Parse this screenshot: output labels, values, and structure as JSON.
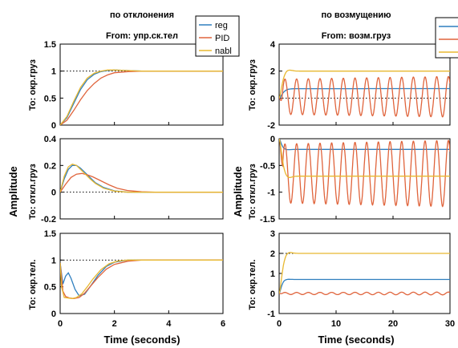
{
  "figure": {
    "y_common_label": "Amplitude",
    "x_common_label": "Time (seconds)"
  },
  "columns": [
    {
      "title": "по отклонения",
      "from": "From: упр.ск.тел"
    },
    {
      "title": "по возмущению",
      "from": "From: возм.груз"
    }
  ],
  "rows": [
    {
      "label": "To: окр.груз"
    },
    {
      "label": "To: откл.груз"
    },
    {
      "label": "To: окр.тел."
    }
  ],
  "legend": [
    "reg",
    "PID",
    "nabl"
  ],
  "colors": {
    "reg": "#2f7fbf",
    "PID": "#e0643c",
    "nabl": "#e8b830"
  },
  "chart_data": {
    "type": "line",
    "panels": [
      {
        "row": 0,
        "col": 0,
        "xlim": [
          0,
          6
        ],
        "ylim": [
          0,
          1.5
        ],
        "yticks": [
          "0",
          "0.5",
          "1",
          "1.5"
        ],
        "dotted_y": 1,
        "series": [
          {
            "legend": "reg",
            "x": [
              0,
              0.25,
              0.5,
              0.75,
              1,
              1.25,
              1.5,
              1.75,
              2,
              2.5,
              3,
              3.5,
              4,
              5,
              6
            ],
            "y": [
              0,
              0.14,
              0.4,
              0.66,
              0.84,
              0.94,
              0.99,
              1.01,
              1.02,
              1.01,
              1,
              1,
              1,
              1,
              1
            ]
          },
          {
            "legend": "PID",
            "x": [
              0,
              0.25,
              0.5,
              0.75,
              1,
              1.25,
              1.5,
              1.75,
              2,
              2.5,
              3,
              3.5,
              4,
              5,
              6
            ],
            "y": [
              0,
              0.09,
              0.27,
              0.47,
              0.64,
              0.77,
              0.87,
              0.93,
              0.97,
              0.99,
              1,
              1,
              1,
              1,
              1
            ]
          },
          {
            "legend": "nabl",
            "x": [
              0,
              0.25,
              0.5,
              0.75,
              1,
              1.25,
              1.5,
              1.75,
              2,
              2.5,
              3,
              3.5,
              4,
              5,
              6
            ],
            "y": [
              0,
              0.16,
              0.44,
              0.7,
              0.87,
              0.96,
              1,
              1.02,
              1.02,
              1.01,
              1,
              1,
              1,
              1,
              1
            ]
          }
        ]
      },
      {
        "row": 0,
        "col": 1,
        "xlim": [
          0,
          30
        ],
        "ylim": [
          -2,
          4
        ],
        "yticks": [
          "-2",
          "0",
          "2",
          "4"
        ],
        "dotted_y": 0,
        "series": [
          {
            "legend": "reg",
            "kind": "step",
            "final": 0.7,
            "rise": 1.5
          },
          {
            "legend": "PID",
            "kind": "osc",
            "center": 0.1,
            "amp_start": 1.3,
            "amp_end": 1.5,
            "period": 2.05
          },
          {
            "legend": "nabl",
            "kind": "step",
            "final": 2.0,
            "rise": 1.3,
            "overshoot": 0.08
          }
        ]
      },
      {
        "row": 1,
        "col": 0,
        "xlim": [
          0,
          6
        ],
        "ylim": [
          -0.2,
          0.4
        ],
        "yticks": [
          "-0.2",
          "0",
          "0.2",
          "0.4"
        ],
        "dotted_y": 0,
        "series": [
          {
            "legend": "reg",
            "x": [
              0,
              0.15,
              0.3,
              0.45,
              0.6,
              0.75,
              0.9,
              1.1,
              1.3,
              1.6,
              2,
              2.5,
              3,
              4,
              6
            ],
            "y": [
              0,
              0.1,
              0.17,
              0.2,
              0.2,
              0.18,
              0.15,
              0.11,
              0.07,
              0.035,
              0.01,
              0,
              0,
              0,
              0
            ]
          },
          {
            "legend": "PID",
            "x": [
              0,
              0.2,
              0.4,
              0.6,
              0.8,
              1,
              1.2,
              1.5,
              1.8,
              2.1,
              2.5,
              3,
              3.5,
              4,
              6
            ],
            "y": [
              0,
              0.06,
              0.11,
              0.135,
              0.14,
              0.13,
              0.115,
              0.085,
              0.055,
              0.03,
              0.012,
              0.003,
              0,
              0,
              0
            ]
          },
          {
            "legend": "nabl",
            "x": [
              0,
              0.15,
              0.3,
              0.45,
              0.6,
              0.75,
              0.9,
              1.1,
              1.3,
              1.6,
              2,
              2.5,
              3,
              4,
              6
            ],
            "y": [
              0,
              0.12,
              0.19,
              0.21,
              0.2,
              0.17,
              0.14,
              0.1,
              0.065,
              0.03,
              0.008,
              0,
              0,
              0,
              0
            ]
          }
        ]
      },
      {
        "row": 1,
        "col": 1,
        "xlim": [
          0,
          30
        ],
        "ylim": [
          -1.5,
          0
        ],
        "yticks": [
          "-1.5",
          "-1",
          "-0.5",
          "0"
        ],
        "dotted_y": 0,
        "series": [
          {
            "legend": "reg",
            "kind": "step",
            "final": -0.2,
            "rise": 1.0,
            "overshoot": 0.05
          },
          {
            "legend": "PID",
            "kind": "osc",
            "center": -0.65,
            "amp_start": 0.55,
            "amp_end": 0.62,
            "period": 2.05
          },
          {
            "legend": "nabl",
            "kind": "step",
            "final": -0.7,
            "rise": 1.3,
            "overshoot": 0.08
          }
        ]
      },
      {
        "row": 2,
        "col": 0,
        "xlim": [
          0,
          6
        ],
        "ylim": [
          0,
          1.5
        ],
        "yticks": [
          "0",
          "0.5",
          "1",
          "1.5"
        ],
        "dotted_y": 1,
        "series": [
          {
            "legend": "reg",
            "x": [
              0,
              0.1,
              0.2,
              0.3,
              0.4,
              0.55,
              0.7,
              0.9,
              1.1,
              1.4,
              1.7,
              2,
              2.5,
              3,
              4,
              6
            ],
            "y": [
              0.95,
              0.55,
              0.7,
              0.76,
              0.66,
              0.45,
              0.33,
              0.36,
              0.5,
              0.72,
              0.88,
              0.96,
              1,
              1,
              1,
              1
            ]
          },
          {
            "legend": "PID",
            "x": [
              0,
              0.1,
              0.2,
              0.35,
              0.5,
              0.7,
              0.9,
              1.1,
              1.4,
              1.7,
              2,
              2.5,
              3,
              4,
              6
            ],
            "y": [
              0.95,
              0.42,
              0.32,
              0.29,
              0.28,
              0.3,
              0.38,
              0.5,
              0.68,
              0.83,
              0.92,
              0.98,
              1,
              1,
              1
            ]
          },
          {
            "legend": "nabl",
            "x": [
              0,
              0.05,
              0.15,
              0.3,
              0.45,
              0.6,
              0.8,
              1,
              1.2,
              1.5,
              1.8,
              2.1,
              2.5,
              3,
              4,
              6
            ],
            "y": [
              0.95,
              0.5,
              0.3,
              0.29,
              0.28,
              0.3,
              0.37,
              0.5,
              0.64,
              0.82,
              0.93,
              0.98,
              1,
              1,
              1,
              1
            ]
          }
        ]
      },
      {
        "row": 2,
        "col": 1,
        "xlim": [
          0,
          30
        ],
        "ylim": [
          -1,
          3
        ],
        "yticks": [
          "-1",
          "0",
          "1",
          "2",
          "3"
        ],
        "dotted_y": 2,
        "series": [
          {
            "legend": "reg",
            "kind": "step",
            "final": 0.7,
            "rise": 1.0,
            "overshoot": 0.03
          },
          {
            "legend": "PID",
            "kind": "osc",
            "center": 0.0,
            "amp_start": 0.05,
            "amp_end": 0.07,
            "period": 2.05
          },
          {
            "legend": "nabl",
            "kind": "step",
            "final": 2.0,
            "rise": 1.3,
            "overshoot": 0.06
          }
        ]
      }
    ],
    "xticks": {
      "left": [
        "0",
        "2",
        "4",
        "6"
      ],
      "right": [
        "0",
        "10",
        "20",
        "30"
      ]
    }
  }
}
